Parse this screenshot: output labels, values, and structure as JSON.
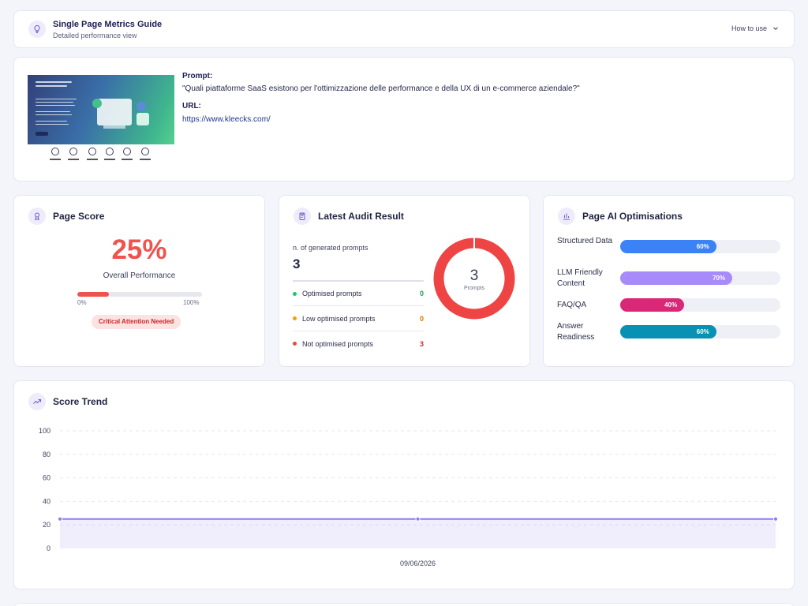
{
  "header": {
    "title": "Single Page Metrics Guide",
    "subtitle": "Detailed performance view",
    "how_to_use": "How to use"
  },
  "prompt_card": {
    "prompt_label": "Prompt:",
    "prompt_text": "\"Quali piattaforme SaaS esistono per l'ottimizzazione delle performance e della UX di un e-commerce aziendale?\"",
    "url_label": "URL:",
    "url_text": "https://www.kleecks.com/"
  },
  "page_score": {
    "title": "Page Score",
    "value": "25%",
    "percent": 25,
    "caption": "Overall Performance",
    "min_label": "0%",
    "max_label": "100%",
    "badge": "Critical Attention Needed",
    "color": "#ef5350"
  },
  "audit": {
    "title": "Latest Audit Result",
    "generated_label": "n. of generated prompts",
    "generated_count": "3",
    "rows": [
      {
        "label": "Optimised prompts",
        "value": "0",
        "color": "#22c55e"
      },
      {
        "label": "Low optimised prompts",
        "value": "0",
        "color": "#f59e0b"
      },
      {
        "label": "Not optimised prompts",
        "value": "3",
        "color": "#ef4444"
      }
    ],
    "donut_value": "3",
    "donut_label": "Prompts",
    "donut_color": "#ef4444"
  },
  "ai_optimisations": {
    "title": "Page AI Optimisations",
    "items": [
      {
        "label": "Structured Data",
        "value": 60,
        "text": "60%",
        "color": "#3b82f6"
      },
      {
        "label": "LLM Friendly Content",
        "value": 70,
        "text": "70%",
        "color": "#a78bfa"
      },
      {
        "label": "FAQ/QA",
        "value": 40,
        "text": "40%",
        "color": "#db2777"
      },
      {
        "label": "Answer Readiness",
        "value": 60,
        "text": "60%",
        "color": "#0891b2"
      }
    ]
  },
  "trend": {
    "title": "Score Trend",
    "chart_data": {
      "type": "area",
      "x": [
        "",
        "09/06/2026",
        ""
      ],
      "y": [
        25,
        25,
        25
      ],
      "ylim": [
        0,
        100
      ],
      "yticks": [
        0,
        20,
        40,
        60,
        80,
        100
      ],
      "xtick_labels": [
        "09/06/2026"
      ],
      "grid": true,
      "color": "#8b7cf0"
    }
  }
}
